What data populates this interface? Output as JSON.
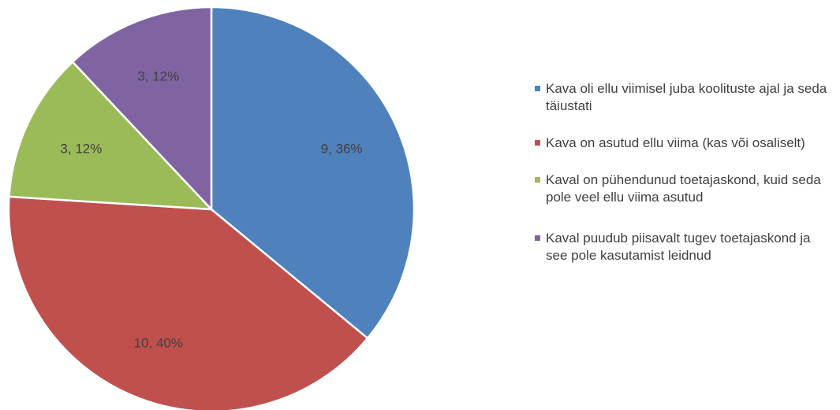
{
  "chart_data": {
    "type": "pie",
    "title": "",
    "series": [
      {
        "values": [
          9,
          10,
          3,
          3
        ]
      }
    ],
    "slices": [
      {
        "label": "Kava oli ellu viimisel juba koolituste ajal ja seda täiustati",
        "value": 9,
        "percent": 36,
        "data_label": "9, 36%",
        "color": "#4F81BD"
      },
      {
        "label": "Kava on asutud ellu viima (kas või osaliselt)",
        "value": 10,
        "percent": 40,
        "data_label": "10, 40%",
        "color": "#C0504D"
      },
      {
        "label": "Kaval on pühendunud toetajaskond, kuid seda pole veel ellu viima asutud",
        "value": 3,
        "percent": 12,
        "data_label": "3, 12%",
        "color": "#9BBB59"
      },
      {
        "label": "Kaval puudub piisavalt tugev toetajaskond ja see pole kasutamist leidnud",
        "value": 3,
        "percent": 12,
        "data_label": "3, 12%",
        "color": "#8064A2"
      }
    ],
    "legend_position": "right",
    "start_angle": "12 o'clock",
    "direction": "clockwise"
  }
}
